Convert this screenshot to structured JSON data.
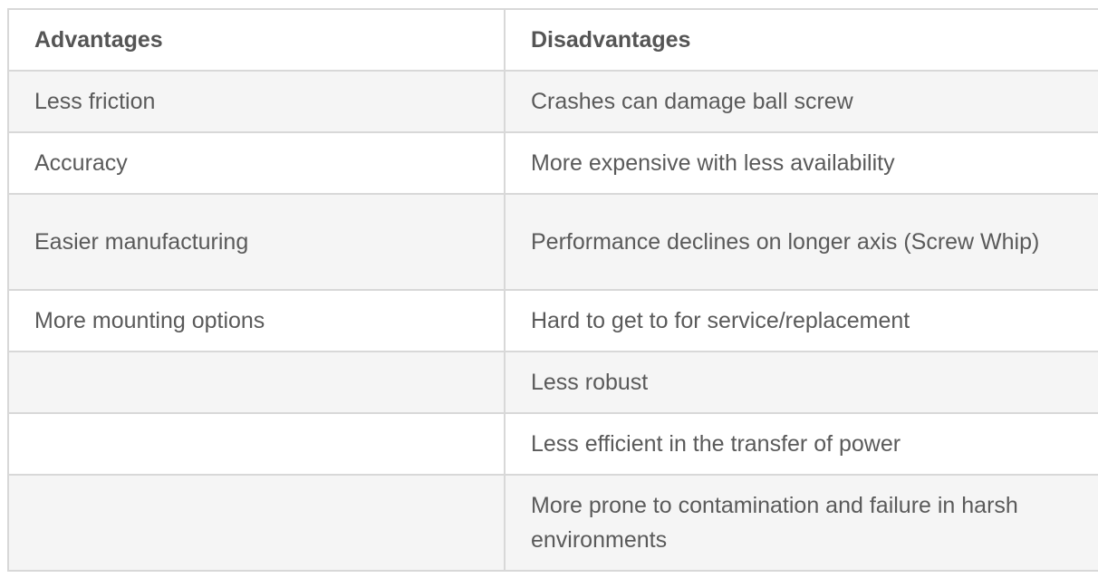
{
  "table": {
    "headers": [
      "Advantages",
      "Disadvantages"
    ],
    "rows": [
      [
        "Less friction",
        "Crashes can damage ball screw"
      ],
      [
        "Accuracy",
        "More expensive with less availability"
      ],
      [
        "Easier manufacturing",
        "Performance declines on longer axis (Screw Whip)"
      ],
      [
        "More mounting options",
        "Hard to get to for service/replacement"
      ],
      [
        "",
        "Less robust"
      ],
      [
        "",
        "Less efficient in the transfer of power"
      ],
      [
        "",
        "More prone to contamination and failure in harsh environments"
      ]
    ]
  }
}
